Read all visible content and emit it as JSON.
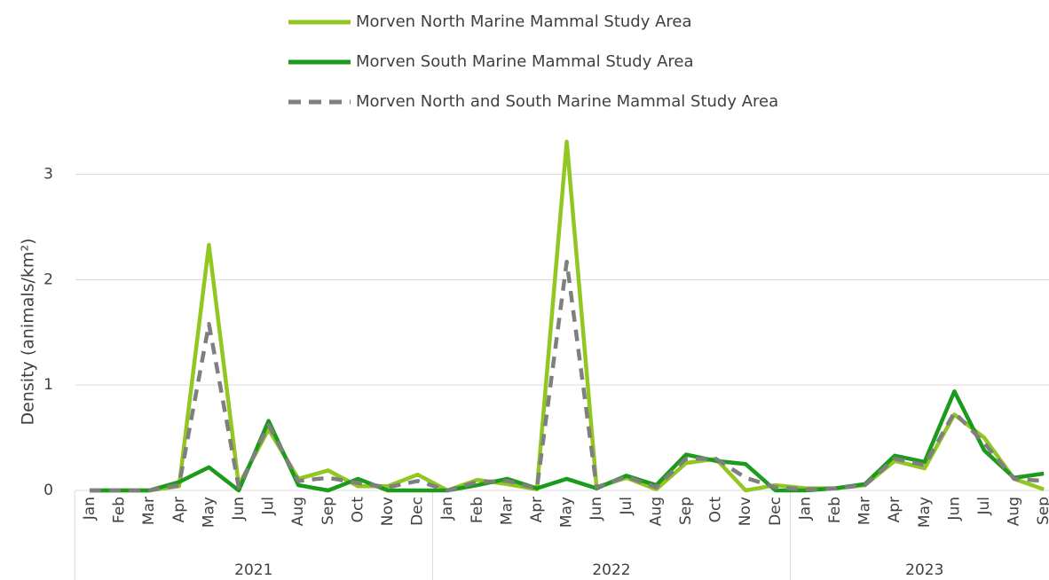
{
  "chart_data": {
    "type": "line",
    "y_label": "Density (animals/km²)",
    "groups": [
      {
        "name": "2021",
        "categories": [
          "Jan",
          "Feb",
          "Mar",
          "Apr",
          "May",
          "Jun",
          "Jul",
          "Aug",
          "Sep",
          "Oct",
          "Nov",
          "Dec"
        ]
      },
      {
        "name": "2022",
        "categories": [
          "Jan",
          "Feb",
          "Mar",
          "Apr",
          "May",
          "Jun",
          "Jul",
          "Aug",
          "Sep",
          "Oct",
          "Nov",
          "Dec"
        ]
      },
      {
        "name": "2023",
        "categories": [
          "Jan",
          "Feb",
          "Mar",
          "Apr",
          "May",
          "Jun",
          "Jul",
          "Aug",
          "Sep"
        ]
      }
    ],
    "series": [
      {
        "name": "Morven North Marine Mammal Study Area",
        "color": "#92c621",
        "dashed": false,
        "values": [
          0,
          0,
          0,
          0.04,
          2.33,
          0.05,
          0.58,
          0.11,
          0.19,
          0.04,
          0.04,
          0.15,
          0,
          0.1,
          0.06,
          0.01,
          3.31,
          0.03,
          0.12,
          0.01,
          0.26,
          0.3,
          0,
          0.05,
          0.02,
          0.02,
          0.05,
          0.28,
          0.21,
          0.72,
          0.5,
          0.11,
          0.01
        ]
      },
      {
        "name": "Morven South Marine Mammal Study Area",
        "color": "#1c9a1c",
        "dashed": false,
        "values": [
          0,
          0,
          0,
          0.08,
          0.22,
          0,
          0.66,
          0.05,
          0,
          0.11,
          0,
          0,
          0,
          0.05,
          0.11,
          0.02,
          0.11,
          0.02,
          0.14,
          0.05,
          0.34,
          0.28,
          0.25,
          0,
          0,
          0.02,
          0.06,
          0.33,
          0.27,
          0.94,
          0.38,
          0.12,
          0.16
        ]
      },
      {
        "name": "Morven North and South Marine Mammal Study Area",
        "color": "#7f7f7f",
        "dashed": true,
        "values": [
          0,
          0,
          0,
          0.05,
          1.58,
          0.03,
          0.62,
          0.09,
          0.12,
          0.07,
          0.03,
          0.09,
          0,
          0.08,
          0.09,
          0.02,
          2.17,
          0.03,
          0.13,
          0.03,
          0.3,
          0.3,
          0.12,
          0.03,
          0.01,
          0.02,
          0.05,
          0.3,
          0.24,
          0.74,
          0.45,
          0.11,
          0.09
        ]
      }
    ],
    "ylim": [
      0,
      3.4
    ],
    "yticks": [
      0,
      1,
      2,
      3
    ],
    "grid": true,
    "legend": "top"
  }
}
